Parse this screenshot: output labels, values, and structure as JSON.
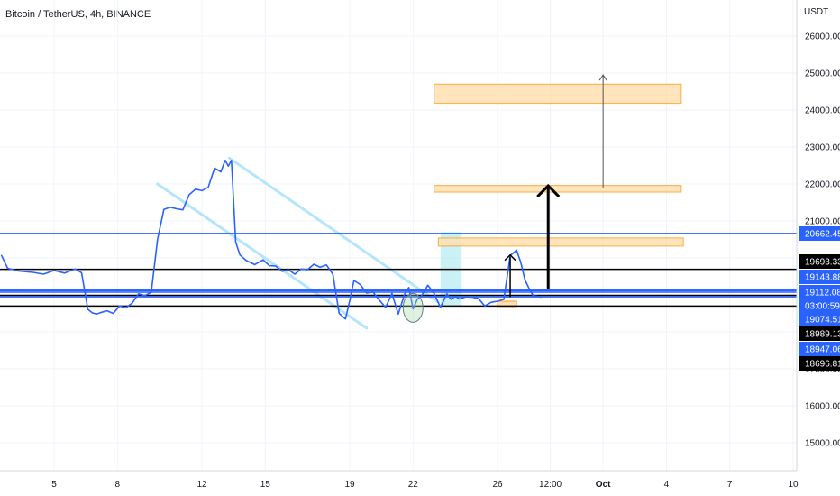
{
  "header": {
    "title": "Bitcoin / TetherUS, 4h, BINANCE",
    "currency": "USDT"
  },
  "colors": {
    "price_line": "#2962ff",
    "grid": "#f0f3fa",
    "level_black": "#000000",
    "level_blue": "#2962ff",
    "zone_fill": "#ffe0b2",
    "zone_border": "#f7a21b",
    "teal_fill": "#b2ebf2",
    "channel": "#b3e5fc"
  },
  "chart_data": {
    "type": "line",
    "title": "Bitcoin / TetherUS, 4h, BINANCE",
    "xlabel": "",
    "ylabel": "USDT",
    "ylim": [
      14470,
      26470
    ],
    "x_ticks": [
      "5",
      "8",
      "12",
      "15",
      "19",
      "22",
      "26",
      "12:00",
      "Oct",
      "4",
      "7",
      "10"
    ],
    "x_tick_days": [
      5,
      8,
      12,
      15,
      19,
      22,
      26,
      28.5,
      31,
      34,
      37,
      40
    ],
    "y_ticks": [
      15000,
      16000,
      17000,
      18000,
      19000,
      20000,
      21000,
      22000,
      23000,
      24000,
      25000,
      26000
    ],
    "y_tick_labels": [
      "15000.00",
      "16000.00",
      "17000.00",
      "18000.00",
      "19000.00",
      "20000.00",
      "21000.00",
      "22000.00",
      "23000.00",
      "24000.00",
      "25000.00",
      "26000.00"
    ],
    "series": [
      {
        "x": [
          2.5,
          2.8,
          3.3,
          4.0,
          4.5,
          5.0,
          5.5,
          6.0,
          6.3,
          6.6,
          6.8,
          7.0,
          7.2,
          7.5,
          7.8,
          8.1,
          8.4,
          8.7,
          9.0,
          9.3,
          9.6,
          9.9,
          10.2,
          10.5,
          10.8,
          11.1,
          11.4,
          11.7,
          12.0,
          12.3,
          12.6,
          12.9,
          13.1,
          13.25,
          13.4,
          13.6,
          13.8,
          14.1,
          14.5,
          14.9,
          15.2,
          15.5,
          15.8,
          16.1,
          16.4,
          16.7,
          17.0,
          17.3,
          17.6,
          17.9,
          18.2,
          18.5,
          18.8,
          19.0,
          19.2,
          19.5,
          19.8,
          20.1,
          20.4,
          20.7,
          21.0,
          21.3,
          21.6,
          21.8,
          22.0,
          22.2,
          22.4,
          22.7,
          23.0,
          23.3,
          23.6,
          23.8,
          24.0,
          24.2,
          24.5,
          24.8,
          25.1,
          25.4,
          25.7,
          26.0,
          26.3,
          26.6,
          26.9,
          27.1,
          27.3,
          27.5,
          27.7,
          27.9,
          28.1
        ],
        "y": [
          20080,
          19720,
          19650,
          19610,
          19560,
          19660,
          19590,
          19700,
          19600,
          18610,
          18520,
          18480,
          18520,
          18570,
          18500,
          18700,
          18650,
          18780,
          19030,
          18980,
          19070,
          20500,
          21310,
          21370,
          21330,
          21300,
          21710,
          21860,
          21820,
          21910,
          22430,
          22330,
          22640,
          22480,
          22640,
          20430,
          20080,
          19930,
          19820,
          19950,
          19790,
          19780,
          19640,
          19680,
          19560,
          19700,
          19680,
          19830,
          19750,
          19810,
          19560,
          18500,
          18350,
          18840,
          19390,
          19280,
          19050,
          19080,
          18860,
          18660,
          19040,
          18480,
          19020,
          19200,
          18620,
          18880,
          18980,
          19260,
          19040,
          18660,
          19030,
          18880,
          18960,
          18890,
          18950,
          18940,
          18900,
          18700,
          18800,
          18830,
          18880,
          20060,
          20210,
          19880,
          19400,
          19170,
          18970,
          18960,
          18940
        ]
      }
    ],
    "x_start_day": 1.15,
    "x_end_day": 40.0,
    "y_extra_labels": [
      "03:00:59"
    ],
    "levels": [
      {
        "price": 20662.45,
        "label": "20662.45",
        "color": "#2962ff",
        "text_color": "#ffffff"
      },
      {
        "price": 19693.33,
        "label": "19693.33",
        "color": "#000000",
        "text_color": "#ffffff"
      },
      {
        "price": 19143.88,
        "label": "19143.88",
        "color": "#2962ff",
        "text_color": "#ffffff"
      },
      {
        "price": 19112.08,
        "label": "19112.08",
        "color": "#2962ff",
        "text_color": "#ffffff"
      },
      {
        "price": 19074.51,
        "label": "19074.51",
        "color": "#2962ff",
        "text_color": "#ffffff"
      },
      {
        "price": 18989.13,
        "label": "18989.13",
        "color": "#000000",
        "text_color": "#ffffff"
      },
      {
        "price": 18947.06,
        "label": "18947.06",
        "color": "#2962ff",
        "text_color": "#ffffff"
      },
      {
        "price": 18696.81,
        "label": "18696.81",
        "color": "#000000",
        "text_color": "#ffffff"
      }
    ],
    "zones": [
      {
        "x0": 23.0,
        "x1": 34.7,
        "y0": 24180,
        "y1": 24700
      },
      {
        "x0": 23.0,
        "x1": 34.7,
        "y0": 21780,
        "y1": 21960
      },
      {
        "x0": 23.2,
        "x1": 34.8,
        "y0": 20320,
        "y1": 20540
      }
    ],
    "grid": true,
    "legend": "none"
  }
}
